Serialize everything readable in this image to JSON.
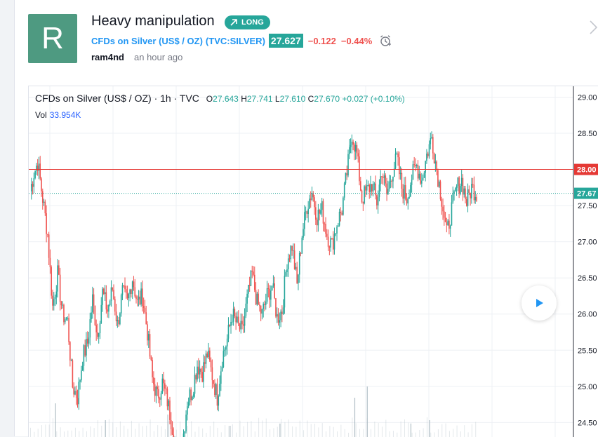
{
  "idea": {
    "title": "Heavy manipulation",
    "badge": "LONG",
    "avatar_letter": "R",
    "author": "ram4nd",
    "time_ago": "an hour ago"
  },
  "symbol": {
    "link_text": "CFDs on Silver (US$ / OZ)",
    "ticker_text": "(TVC:SILVER)",
    "price": "27.627",
    "change": "−0.122",
    "change_pct": "−0.44%"
  },
  "chart_legend": {
    "title": "CFDs on Silver (US$ / OZ) · 1h · TVC",
    "o_label": "O",
    "o": "27.643",
    "h_label": "H",
    "h": "27.741",
    "l_label": "L",
    "l": "27.610",
    "c_label": "C",
    "c": "27.670",
    "change": "+0.027 (+0.10%)",
    "vol_label": "Vol",
    "vol": "33.954K"
  },
  "colors": {
    "up": "#26a69a",
    "down": "#ef5350",
    "avatar": "#4e9a81",
    "link": "#2196f3",
    "hline": "#e53935"
  },
  "chart_data": {
    "type": "candlestick",
    "ylim": [
      24.3,
      29.15
    ],
    "y_ticks": [
      "29.00",
      "28.50",
      "28.00",
      "27.50",
      "27.00",
      "26.50",
      "26.00",
      "25.50",
      "25.00",
      "24.50"
    ],
    "horizontal_line": {
      "value": 28.0,
      "label": "28.00"
    },
    "last_price_line": {
      "value": 27.67,
      "label": "27.67"
    },
    "close_path": [
      [
        0,
        27.7
      ],
      [
        3,
        27.95
      ],
      [
        6,
        28.1
      ],
      [
        10,
        27.6
      ],
      [
        14,
        27.1
      ],
      [
        18,
        26.1
      ],
      [
        22,
        26.55
      ],
      [
        26,
        26.0
      ],
      [
        30,
        25.9
      ],
      [
        34,
        25.0
      ],
      [
        38,
        24.85
      ],
      [
        42,
        25.4
      ],
      [
        46,
        25.6
      ],
      [
        50,
        26.2
      ],
      [
        54,
        25.7
      ],
      [
        58,
        26.3
      ],
      [
        62,
        26.05
      ],
      [
        66,
        26.35
      ],
      [
        70,
        25.85
      ],
      [
        74,
        26.3
      ],
      [
        78,
        26.15
      ],
      [
        82,
        26.5
      ],
      [
        86,
        26.15
      ],
      [
        90,
        26.25
      ],
      [
        94,
        25.75
      ],
      [
        98,
        25.1
      ],
      [
        102,
        24.85
      ],
      [
        106,
        25.05
      ],
      [
        110,
        24.8
      ],
      [
        114,
        24.45
      ],
      [
        118,
        24.1
      ],
      [
        122,
        24.2
      ],
      [
        126,
        24.8
      ],
      [
        130,
        24.95
      ],
      [
        134,
        25.3
      ],
      [
        138,
        25.2
      ],
      [
        142,
        25.45
      ],
      [
        146,
        25.15
      ],
      [
        150,
        24.85
      ],
      [
        154,
        25.4
      ],
      [
        158,
        25.65
      ],
      [
        162,
        26.0
      ],
      [
        166,
        25.85
      ],
      [
        170,
        25.75
      ],
      [
        174,
        26.2
      ],
      [
        178,
        26.55
      ],
      [
        182,
        26.15
      ],
      [
        186,
        26.0
      ],
      [
        190,
        26.25
      ],
      [
        194,
        26.4
      ],
      [
        198,
        25.95
      ],
      [
        202,
        26.05
      ],
      [
        206,
        26.75
      ],
      [
        210,
        26.95
      ],
      [
        214,
        26.4
      ],
      [
        218,
        27.1
      ],
      [
        222,
        27.5
      ],
      [
        226,
        27.7
      ],
      [
        230,
        27.35
      ],
      [
        234,
        27.45
      ],
      [
        238,
        27.1
      ],
      [
        242,
        26.95
      ],
      [
        246,
        27.25
      ],
      [
        250,
        27.45
      ],
      [
        254,
        27.95
      ],
      [
        258,
        28.5
      ],
      [
        262,
        28.2
      ],
      [
        266,
        27.6
      ],
      [
        270,
        27.7
      ],
      [
        274,
        27.8
      ],
      [
        278,
        27.55
      ],
      [
        282,
        28.0
      ],
      [
        286,
        27.65
      ],
      [
        290,
        27.95
      ],
      [
        294,
        28.15
      ],
      [
        298,
        27.75
      ],
      [
        302,
        27.6
      ],
      [
        306,
        27.9
      ],
      [
        310,
        28.05
      ],
      [
        314,
        27.85
      ],
      [
        318,
        28.2
      ],
      [
        322,
        28.45
      ],
      [
        326,
        28.0
      ],
      [
        330,
        27.6
      ],
      [
        334,
        27.1
      ],
      [
        338,
        27.45
      ],
      [
        342,
        27.75
      ],
      [
        346,
        27.85
      ],
      [
        350,
        27.55
      ],
      [
        354,
        27.75
      ],
      [
        358,
        27.67
      ]
    ],
    "volume_peaks": [
      [
        20,
        0.3
      ],
      [
        60,
        0.15
      ],
      [
        110,
        0.2
      ],
      [
        160,
        0.1
      ],
      [
        200,
        0.12
      ],
      [
        260,
        0.35
      ],
      [
        270,
        0.45
      ],
      [
        305,
        0.12
      ],
      [
        320,
        0.15
      ]
    ]
  }
}
